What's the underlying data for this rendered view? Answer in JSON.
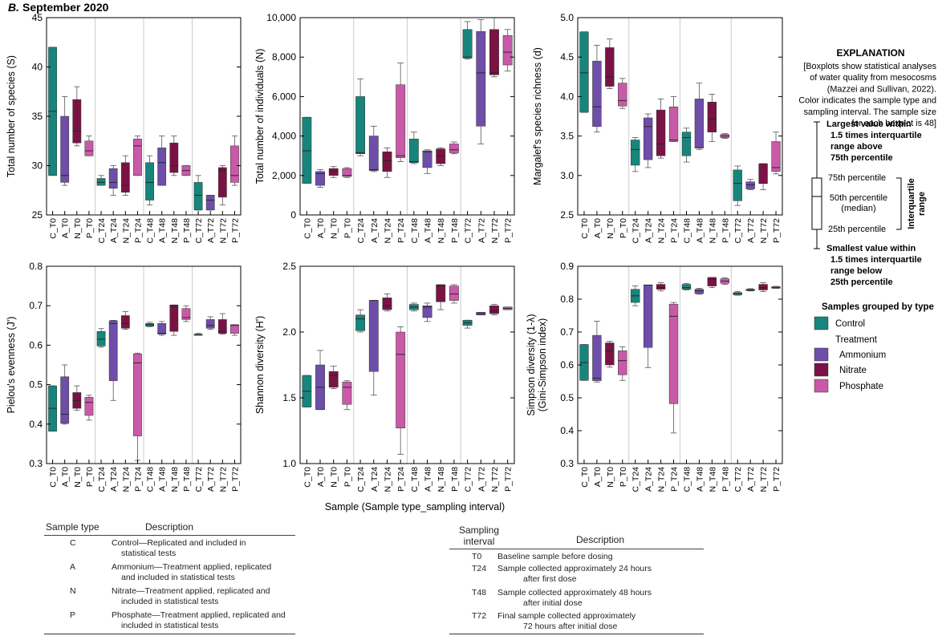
{
  "figure": {
    "panel_label": "B.",
    "panel_title": "September 2020",
    "x_axis_title": "Sample (Sample type_sampling interval)"
  },
  "colors": {
    "control": "#17857b",
    "ammonium": "#6e4ea8",
    "nitrate": "#7a1344",
    "phosphate": "#c85aa8",
    "grid": "#cccccc",
    "axis": "#000000"
  },
  "chart_data": [
    {
      "type": "boxplot",
      "ylabel": "Total number of species (S)",
      "ylim": [
        25,
        45
      ],
      "yticks": [
        25,
        30,
        35,
        40,
        45
      ],
      "ytick_labels": [
        "25",
        "30",
        "35",
        "40",
        "45"
      ],
      "categories": [
        "C_T0",
        "A_T0",
        "N_T0",
        "P_T0",
        "C_T24",
        "A_T24",
        "N_T24",
        "P_T24",
        "C_T48",
        "A_T48",
        "N_T48",
        "P_T48",
        "C_T72",
        "A_T72",
        "N_T72",
        "P_T72"
      ],
      "boxes": [
        {
          "min": 29,
          "q1": 29,
          "median": 35.5,
          "q3": 42,
          "max": 42
        },
        {
          "min": 28,
          "q1": 28.3,
          "median": 29,
          "q3": 35,
          "max": 37
        },
        {
          "min": 32,
          "q1": 32.3,
          "median": 33.5,
          "q3": 36.7,
          "max": 38
        },
        {
          "min": 31,
          "q1": 31,
          "median": 31.5,
          "q3": 32.5,
          "max": 33
        },
        {
          "min": 28,
          "q1": 28,
          "median": 28.3,
          "q3": 28.7,
          "max": 29
        },
        {
          "min": 27,
          "q1": 27.7,
          "median": 28.3,
          "q3": 29.7,
          "max": 30
        },
        {
          "min": 27,
          "q1": 27.3,
          "median": 28,
          "q3": 30.3,
          "max": 31
        },
        {
          "min": 29,
          "q1": 29,
          "median": 32,
          "q3": 32.7,
          "max": 33
        },
        {
          "min": 26,
          "q1": 26.5,
          "median": 28.3,
          "q3": 30.3,
          "max": 31
        },
        {
          "min": 28,
          "q1": 28,
          "median": 30.3,
          "q3": 31.8,
          "max": 33
        },
        {
          "min": 29,
          "q1": 29.3,
          "median": 30,
          "q3": 32.3,
          "max": 33
        },
        {
          "min": 29,
          "q1": 29,
          "median": 29.5,
          "q3": 30,
          "max": 30
        },
        {
          "min": 25.5,
          "q1": 25.5,
          "median": 27,
          "q3": 28.3,
          "max": 29
        },
        {
          "min": 25.5,
          "q1": 25.5,
          "median": 26.5,
          "q3": 27,
          "max": 27
        },
        {
          "min": 26,
          "q1": 26.8,
          "median": 29.5,
          "q3": 29.8,
          "max": 30
        },
        {
          "min": 28,
          "q1": 28.3,
          "median": 29,
          "q3": 32,
          "max": 33
        }
      ]
    },
    {
      "type": "boxplot",
      "ylabel": "Total number of individuals (N)",
      "ylim": [
        0,
        10000
      ],
      "yticks": [
        0,
        2000,
        4000,
        6000,
        8000,
        10000
      ],
      "ytick_labels": [
        "0",
        "2,000",
        "4,000",
        "6,000",
        "8,000",
        "10,000"
      ],
      "categories": [
        "C_T0",
        "A_T0",
        "N_T0",
        "P_T0",
        "C_T24",
        "A_T24",
        "N_T24",
        "P_T24",
        "C_T48",
        "A_T48",
        "N_T48",
        "P_T48",
        "C_T72",
        "A_T72",
        "N_T72",
        "P_T72"
      ],
      "boxes": [
        {
          "min": 1600,
          "q1": 1600,
          "median": 3250,
          "q3": 4950,
          "max": 4950
        },
        {
          "min": 1400,
          "q1": 1500,
          "median": 2100,
          "q3": 2200,
          "max": 2300
        },
        {
          "min": 1900,
          "q1": 2000,
          "median": 2200,
          "q3": 2350,
          "max": 2450
        },
        {
          "min": 1900,
          "q1": 1950,
          "median": 2000,
          "q3": 2350,
          "max": 2400
        },
        {
          "min": 3000,
          "q1": 3100,
          "median": 3150,
          "q3": 6000,
          "max": 6900
        },
        {
          "min": 2200,
          "q1": 2250,
          "median": 2300,
          "q3": 4000,
          "max": 4500
        },
        {
          "min": 1900,
          "q1": 2200,
          "median": 2750,
          "q3": 3200,
          "max": 3400
        },
        {
          "min": 2700,
          "q1": 2900,
          "median": 3000,
          "q3": 6600,
          "max": 7700
        },
        {
          "min": 2600,
          "q1": 2650,
          "median": 2700,
          "q3": 3850,
          "max": 4200
        },
        {
          "min": 2100,
          "q1": 2400,
          "median": 3200,
          "q3": 3250,
          "max": 3300
        },
        {
          "min": 2500,
          "q1": 2600,
          "median": 3000,
          "q3": 3350,
          "max": 3400
        },
        {
          "min": 3100,
          "q1": 3150,
          "median": 3300,
          "q3": 3600,
          "max": 3700
        },
        {
          "min": 7900,
          "q1": 7950,
          "median": 8000,
          "q3": 9400,
          "max": 9800
        },
        {
          "min": 3600,
          "q1": 4500,
          "median": 7200,
          "q3": 9300,
          "max": 9900
        },
        {
          "min": 7000,
          "q1": 7100,
          "median": 7200,
          "q3": 9400,
          "max": 10000
        },
        {
          "min": 7300,
          "q1": 7600,
          "median": 8250,
          "q3": 9100,
          "max": 9400
        }
      ]
    },
    {
      "type": "boxplot",
      "ylabel": "Margalef's species richness (d)",
      "ylim": [
        2.5,
        5.0
      ],
      "yticks": [
        2.5,
        3.0,
        3.5,
        4.0,
        4.5,
        5.0
      ],
      "ytick_labels": [
        "2.5",
        "3.0",
        "3.5",
        "4.0",
        "4.5",
        "5.0"
      ],
      "categories": [
        "C_T0",
        "A_T0",
        "N_T0",
        "P_T0",
        "C_T24",
        "A_T24",
        "N_T24",
        "P_T24",
        "C_T48",
        "A_T48",
        "N_T48",
        "P_T48",
        "C_T72",
        "A_T72",
        "N_T72",
        "P_T72"
      ],
      "boxes": [
        {
          "min": 3.8,
          "q1": 3.8,
          "median": 4.3,
          "q3": 4.82,
          "max": 4.82
        },
        {
          "min": 3.55,
          "q1": 3.62,
          "median": 3.87,
          "q3": 4.45,
          "max": 4.65
        },
        {
          "min": 4.1,
          "q1": 4.13,
          "median": 4.25,
          "q3": 4.62,
          "max": 4.73
        },
        {
          "min": 3.85,
          "q1": 3.88,
          "median": 3.95,
          "q3": 4.17,
          "max": 4.23
        },
        {
          "min": 3.05,
          "q1": 3.13,
          "median": 3.33,
          "q3": 3.45,
          "max": 3.48
        },
        {
          "min": 3.1,
          "q1": 3.2,
          "median": 3.62,
          "q3": 3.73,
          "max": 3.78
        },
        {
          "min": 3.22,
          "q1": 3.25,
          "median": 3.4,
          "q3": 3.83,
          "max": 3.97
        },
        {
          "min": 3.43,
          "q1": 3.43,
          "median": 3.45,
          "q3": 3.87,
          "max": 4.0
        },
        {
          "min": 3.17,
          "q1": 3.25,
          "median": 3.48,
          "q3": 3.55,
          "max": 3.6
        },
        {
          "min": 3.33,
          "q1": 3.35,
          "median": 3.35,
          "q3": 3.97,
          "max": 4.17
        },
        {
          "min": 3.43,
          "q1": 3.55,
          "median": 3.72,
          "q3": 3.93,
          "max": 4.03
        },
        {
          "min": 3.47,
          "q1": 3.48,
          "median": 3.5,
          "q3": 3.52,
          "max": 3.53
        },
        {
          "min": 2.62,
          "q1": 2.68,
          "median": 2.9,
          "q3": 3.07,
          "max": 3.12
        },
        {
          "min": 2.82,
          "q1": 2.83,
          "median": 2.88,
          "q3": 2.92,
          "max": 2.95
        },
        {
          "min": 2.82,
          "q1": 2.9,
          "median": 2.9,
          "q3": 3.15,
          "max": 3.15
        },
        {
          "min": 3.02,
          "q1": 3.05,
          "median": 3.1,
          "q3": 3.43,
          "max": 3.55
        }
      ]
    },
    {
      "type": "boxplot",
      "ylabel": "Pielou's evenness (J')",
      "ylim": [
        0.3,
        0.8
      ],
      "yticks": [
        0.3,
        0.4,
        0.5,
        0.6,
        0.7,
        0.8
      ],
      "ytick_labels": [
        "0.3",
        "0.4",
        "0.5",
        "0.6",
        "0.7",
        "0.8"
      ],
      "categories": [
        "C_T0",
        "A_T0",
        "N_T0",
        "P_T0",
        "C_T24",
        "A_T24",
        "N_T24",
        "P_T24",
        "C_T48",
        "A_T48",
        "N_T48",
        "P_T48",
        "C_T72",
        "A_T72",
        "N_T72",
        "P_T72"
      ],
      "boxes": [
        {
          "min": 0.382,
          "q1": 0.382,
          "median": 0.44,
          "q3": 0.497,
          "max": 0.497
        },
        {
          "min": 0.4,
          "q1": 0.402,
          "median": 0.425,
          "q3": 0.52,
          "max": 0.55
        },
        {
          "min": 0.435,
          "q1": 0.44,
          "median": 0.46,
          "q3": 0.48,
          "max": 0.497
        },
        {
          "min": 0.41,
          "q1": 0.422,
          "median": 0.455,
          "q3": 0.468,
          "max": 0.473
        },
        {
          "min": 0.595,
          "q1": 0.598,
          "median": 0.615,
          "q3": 0.635,
          "max": 0.642
        },
        {
          "min": 0.46,
          "q1": 0.51,
          "median": 0.655,
          "q3": 0.662,
          "max": 0.663
        },
        {
          "min": 0.64,
          "q1": 0.643,
          "median": 0.655,
          "q3": 0.675,
          "max": 0.685
        },
        {
          "min": 0.308,
          "q1": 0.37,
          "median": 0.555,
          "q3": 0.578,
          "max": 0.58
        },
        {
          "min": 0.647,
          "q1": 0.648,
          "median": 0.652,
          "q3": 0.655,
          "max": 0.658
        },
        {
          "min": 0.625,
          "q1": 0.628,
          "median": 0.63,
          "q3": 0.655,
          "max": 0.66
        },
        {
          "min": 0.625,
          "q1": 0.635,
          "median": 0.698,
          "q3": 0.702,
          "max": 0.702
        },
        {
          "min": 0.66,
          "q1": 0.665,
          "median": 0.67,
          "q3": 0.693,
          "max": 0.7
        },
        {
          "min": 0.625,
          "q1": 0.625,
          "median": 0.627,
          "q3": 0.628,
          "max": 0.63
        },
        {
          "min": 0.64,
          "q1": 0.643,
          "median": 0.65,
          "q3": 0.665,
          "max": 0.672
        },
        {
          "min": 0.628,
          "q1": 0.63,
          "median": 0.635,
          "q3": 0.665,
          "max": 0.68
        },
        {
          "min": 0.625,
          "q1": 0.63,
          "median": 0.65,
          "q3": 0.652,
          "max": 0.652
        }
      ]
    },
    {
      "type": "boxplot",
      "ylabel": "Shannon diversity (H')",
      "ylim": [
        1.0,
        2.5
      ],
      "yticks": [
        1.0,
        1.5,
        2.0,
        2.5
      ],
      "ytick_labels": [
        "1.0",
        "1.5",
        "2.0",
        "2.5"
      ],
      "categories": [
        "C_T0",
        "A_T0",
        "N_T0",
        "P_T0",
        "C_T24",
        "A_T24",
        "N_T24",
        "P_T24",
        "C_T48",
        "A_T48",
        "N_T48",
        "P_T48",
        "C_T72",
        "A_T72",
        "N_T72",
        "P_T72"
      ],
      "boxes": [
        {
          "min": 1.43,
          "q1": 1.43,
          "median": 1.55,
          "q3": 1.67,
          "max": 1.67
        },
        {
          "min": 1.41,
          "q1": 1.41,
          "median": 1.58,
          "q3": 1.75,
          "max": 1.86
        },
        {
          "min": 1.57,
          "q1": 1.58,
          "median": 1.67,
          "q3": 1.7,
          "max": 1.74
        },
        {
          "min": 1.41,
          "q1": 1.45,
          "median": 1.58,
          "q3": 1.62,
          "max": 1.63
        },
        {
          "min": 2.0,
          "q1": 2.01,
          "median": 2.1,
          "q3": 2.13,
          "max": 2.17
        },
        {
          "min": 1.52,
          "q1": 1.7,
          "median": 2.24,
          "q3": 2.24,
          "max": 2.24
        },
        {
          "min": 2.16,
          "q1": 2.17,
          "median": 2.2,
          "q3": 2.26,
          "max": 2.29
        },
        {
          "min": 1.07,
          "q1": 1.27,
          "median": 1.83,
          "q3": 2.0,
          "max": 2.04
        },
        {
          "min": 2.16,
          "q1": 2.17,
          "median": 2.19,
          "q3": 2.21,
          "max": 2.22
        },
        {
          "min": 2.08,
          "q1": 2.11,
          "median": 2.19,
          "q3": 2.2,
          "max": 2.22
        },
        {
          "min": 2.17,
          "q1": 2.23,
          "median": 2.35,
          "q3": 2.36,
          "max": 2.36
        },
        {
          "min": 2.22,
          "q1": 2.24,
          "median": 2.29,
          "q3": 2.35,
          "max": 2.36
        },
        {
          "min": 2.03,
          "q1": 2.05,
          "median": 2.07,
          "q3": 2.09,
          "max": 2.09
        },
        {
          "min": 2.13,
          "q1": 2.13,
          "median": 2.14,
          "q3": 2.15,
          "max": 2.15
        },
        {
          "min": 2.13,
          "q1": 2.14,
          "median": 2.16,
          "q3": 2.2,
          "max": 2.21
        },
        {
          "min": 2.17,
          "q1": 2.17,
          "median": 2.18,
          "q3": 2.19,
          "max": 2.19
        }
      ]
    },
    {
      "type": "boxplot",
      "ylabel": "Simpson diversity (1-λ)",
      "ylabel2": "(Gini-Simpson index)",
      "ylim": [
        0.3,
        0.9
      ],
      "yticks": [
        0.3,
        0.4,
        0.5,
        0.6,
        0.7,
        0.8,
        0.9
      ],
      "ytick_labels": [
        "0.3",
        "0.4",
        "0.5",
        "0.6",
        "0.7",
        "0.8",
        "0.9"
      ],
      "categories": [
        "C_T0",
        "A_T0",
        "N_T0",
        "P_T0",
        "C_T24",
        "A_T24",
        "N_T24",
        "P_T24",
        "C_T48",
        "A_T48",
        "N_T48",
        "P_T48",
        "C_T72",
        "A_T72",
        "N_T72",
        "P_T72"
      ],
      "boxes": [
        {
          "min": 0.553,
          "q1": 0.553,
          "median": 0.607,
          "q3": 0.662,
          "max": 0.662
        },
        {
          "min": 0.548,
          "q1": 0.552,
          "median": 0.56,
          "q3": 0.69,
          "max": 0.733
        },
        {
          "min": 0.593,
          "q1": 0.6,
          "median": 0.642,
          "q3": 0.667,
          "max": 0.672
        },
        {
          "min": 0.553,
          "q1": 0.57,
          "median": 0.613,
          "q3": 0.643,
          "max": 0.655
        },
        {
          "min": 0.78,
          "q1": 0.79,
          "median": 0.81,
          "q3": 0.83,
          "max": 0.84
        },
        {
          "min": 0.592,
          "q1": 0.653,
          "median": 0.843,
          "q3": 0.843,
          "max": 0.843
        },
        {
          "min": 0.825,
          "q1": 0.83,
          "median": 0.835,
          "q3": 0.845,
          "max": 0.85
        },
        {
          "min": 0.393,
          "q1": 0.482,
          "median": 0.748,
          "q3": 0.785,
          "max": 0.79
        },
        {
          "min": 0.828,
          "q1": 0.83,
          "median": 0.835,
          "q3": 0.845,
          "max": 0.848
        },
        {
          "min": 0.815,
          "q1": 0.817,
          "median": 0.826,
          "q3": 0.83,
          "max": 0.833
        },
        {
          "min": 0.835,
          "q1": 0.84,
          "median": 0.86,
          "q3": 0.866,
          "max": 0.866
        },
        {
          "min": 0.845,
          "q1": 0.848,
          "median": 0.855,
          "q3": 0.862,
          "max": 0.865
        },
        {
          "min": 0.812,
          "q1": 0.813,
          "median": 0.818,
          "q3": 0.82,
          "max": 0.823
        },
        {
          "min": 0.825,
          "q1": 0.826,
          "median": 0.828,
          "q3": 0.83,
          "max": 0.832
        },
        {
          "min": 0.823,
          "q1": 0.828,
          "median": 0.835,
          "q3": 0.845,
          "max": 0.85
        },
        {
          "min": 0.833,
          "q1": 0.833,
          "median": 0.835,
          "q3": 0.838,
          "max": 0.839
        }
      ]
    }
  ],
  "explanation": {
    "title": "EXPLANATION",
    "note_lines": [
      "[Boxplots show statistical analyses",
      "of water quality from mesocosms",
      "(Mazzei and Sullivan, 2022).",
      "Color indicates the sample type and",
      "sampling interval. The sample size",
      "for each boxplot is 48]"
    ],
    "largest_lines": [
      "Largest value within",
      "1.5 times interquartile",
      "range above",
      "75th percentile"
    ],
    "p75": "75th percentile",
    "p50_lines": [
      "50th percentile",
      "(median)"
    ],
    "p25": "25th percentile",
    "iqr_lines": [
      "Interquartile",
      "range"
    ],
    "smallest_lines": [
      "Smallest value within",
      "1.5 times interquartile",
      "range below",
      "25th percentile"
    ],
    "group_title": "Samples grouped by type",
    "control": "Control",
    "treatment": "Treatment",
    "ammonium": "Ammonium",
    "nitrate": "Nitrate",
    "phosphate": "Phosphate"
  },
  "sample_table": {
    "col1": "Sample type",
    "col2": "Description",
    "rows": [
      {
        "code": "C",
        "lines": [
          "Control—Replicated and included in",
          "statistical tests"
        ]
      },
      {
        "code": "A",
        "lines": [
          "Ammonium—Treatment applied, replicated",
          "and included in statistical tests"
        ]
      },
      {
        "code": "N",
        "lines": [
          "Nitrate—Treatment applied, replicated and",
          "included in statistical tests"
        ]
      },
      {
        "code": "P",
        "lines": [
          "Phosphate—Treatment applied, replicated and",
          "included in statistical tests"
        ]
      }
    ]
  },
  "interval_table": {
    "col1_lines": [
      "Sampling",
      "interval"
    ],
    "col2": "Description",
    "rows": [
      {
        "code": "T0",
        "lines": [
          "Baseline sample before dosing"
        ]
      },
      {
        "code": "T24",
        "lines": [
          "Sample collected approximately 24 hours",
          "after first dose"
        ]
      },
      {
        "code": "T48",
        "lines": [
          "Sample collected approximately 48 hours",
          "after initial dose"
        ]
      },
      {
        "code": "T72",
        "lines": [
          "Final sample collected approximately",
          "72 hours after initial dose"
        ]
      }
    ]
  }
}
